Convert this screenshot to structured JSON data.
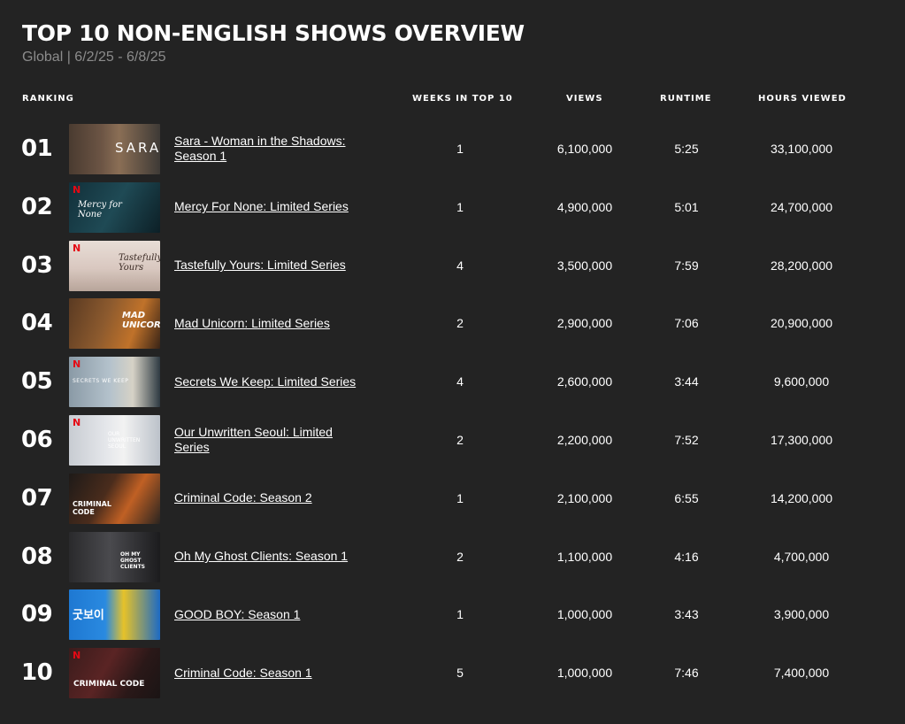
{
  "header": {
    "title": "TOP 10 NON-ENGLISH SHOWS OVERVIEW",
    "subtitle": "Global | 6/2/25 - 6/8/25"
  },
  "columns": {
    "ranking": "RANKING",
    "weeks": "WEEKS IN TOP 10",
    "views": "VIEWS",
    "runtime": "RUNTIME",
    "hours": "HOURS VIEWED"
  },
  "rows": [
    {
      "rank": "01",
      "title": "Sara - Woman in the Shadows: Season 1",
      "weeks": "1",
      "views": "6,100,000",
      "runtime": "5:25",
      "hours": "33,100,000",
      "thumb_label": "SARA"
    },
    {
      "rank": "02",
      "title": "Mercy For None: Limited Series",
      "weeks": "1",
      "views": "4,900,000",
      "runtime": "5:01",
      "hours": "24,700,000",
      "thumb_label": "Mercy for None"
    },
    {
      "rank": "03",
      "title": "Tastefully Yours: Limited Series",
      "weeks": "4",
      "views": "3,500,000",
      "runtime": "7:59",
      "hours": "28,200,000",
      "thumb_label": "Tastefully Yours"
    },
    {
      "rank": "04",
      "title": "Mad Unicorn: Limited Series",
      "weeks": "2",
      "views": "2,900,000",
      "runtime": "7:06",
      "hours": "20,900,000",
      "thumb_label": "MAD UNICORN"
    },
    {
      "rank": "05",
      "title": "Secrets We Keep: Limited Series",
      "weeks": "4",
      "views": "2,600,000",
      "runtime": "3:44",
      "hours": "9,600,000",
      "thumb_label": "SECRETS WE KEEP"
    },
    {
      "rank": "06",
      "title": "Our Unwritten Seoul: Limited Series",
      "weeks": "2",
      "views": "2,200,000",
      "runtime": "7:52",
      "hours": "17,300,000",
      "thumb_label": "OUR UNWRITTEN SEOUL"
    },
    {
      "rank": "07",
      "title": "Criminal Code: Season 2",
      "weeks": "1",
      "views": "2,100,000",
      "runtime": "6:55",
      "hours": "14,200,000",
      "thumb_label": "CRIMINAL CODE"
    },
    {
      "rank": "08",
      "title": "Oh My Ghost Clients: Season 1",
      "weeks": "2",
      "views": "1,100,000",
      "runtime": "4:16",
      "hours": "4,700,000",
      "thumb_label": "OH MY GHOST CLIENTS"
    },
    {
      "rank": "09",
      "title": "GOOD BOY: Season 1",
      "weeks": "1",
      "views": "1,000,000",
      "runtime": "3:43",
      "hours": "3,900,000",
      "thumb_label": "굿보이"
    },
    {
      "rank": "10",
      "title": "Criminal Code: Season 1",
      "weeks": "5",
      "views": "1,000,000",
      "runtime": "7:46",
      "hours": "7,400,000",
      "thumb_label": "CRIMINAL CODE"
    }
  ],
  "colors": {
    "background": "#232323",
    "netflix_red": "#e50914",
    "subtitle": "#8c8c8c"
  }
}
